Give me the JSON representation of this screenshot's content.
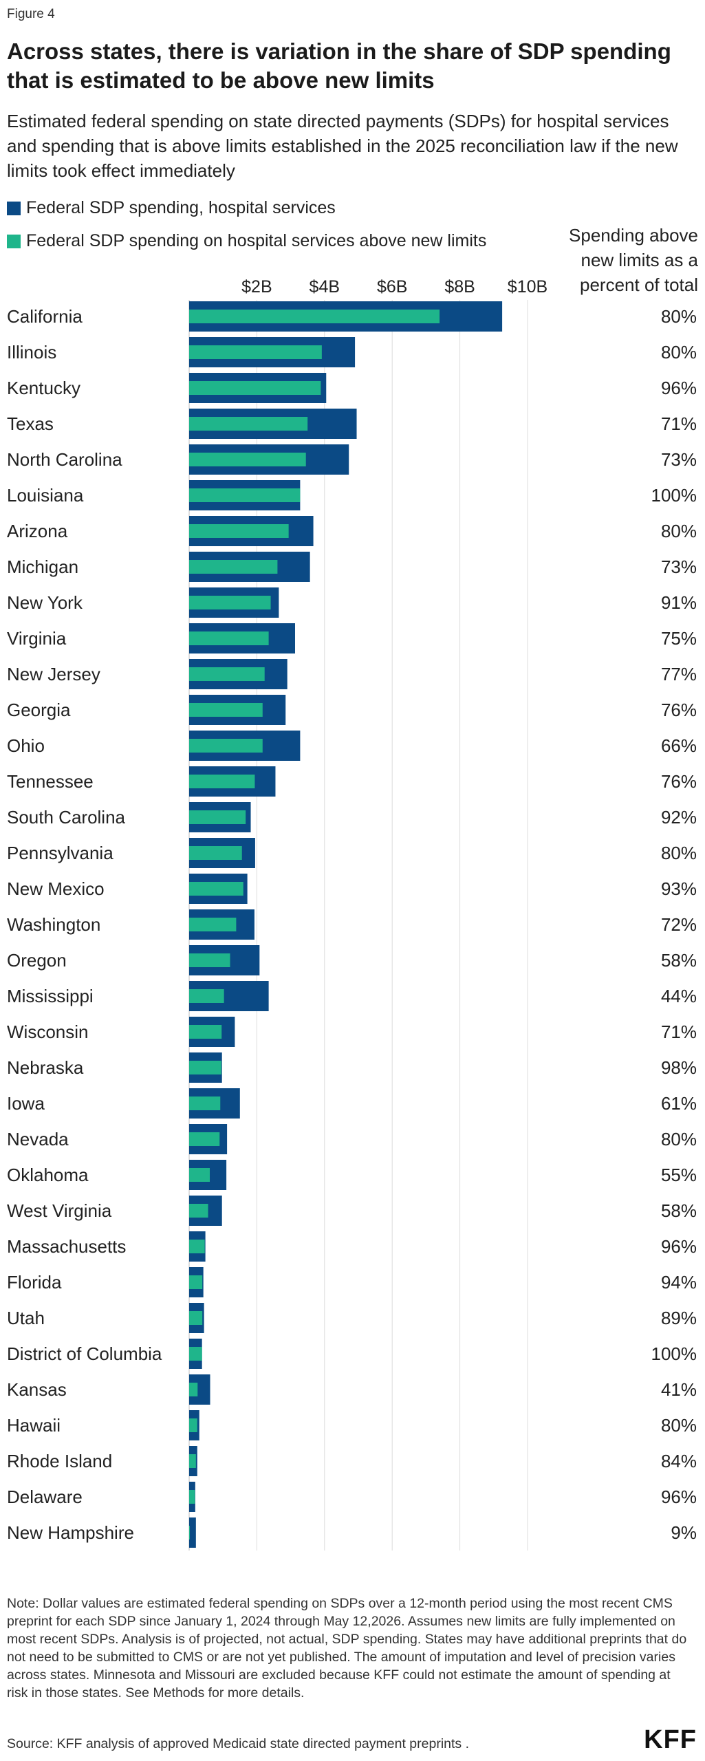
{
  "figure_label": "Figure 4",
  "chart_data": {
    "type": "bar",
    "title": "Across states, there is variation in the share of SDP spending that is estimated to be above new limits",
    "subtitle": "Estimated federal spending on state directed payments (SDPs) for hospital services and spending that is above limits established in the 2025 reconciliation law if the new limits took effect immediately",
    "orientation": "horizontal",
    "xlim": [
      0,
      10.5
    ],
    "x_unit": "billions of dollars",
    "x_ticks": [
      2,
      4,
      6,
      8,
      10
    ],
    "x_tick_labels": [
      "$2B",
      "$4B",
      "$6B",
      "$8B",
      "$10B"
    ],
    "grid": true,
    "legend_position": "top-left",
    "colors": {
      "total": "#0b4a85",
      "above": "#1fb58b"
    },
    "pct_column_header": "Spending above new limits as a percent of total",
    "categories": [
      "California",
      "Illinois",
      "Kentucky",
      "Texas",
      "North Carolina",
      "Louisiana",
      "Arizona",
      "Michigan",
      "New York",
      "Virginia",
      "New Jersey",
      "Georgia",
      "Ohio",
      "Tennessee",
      "South Carolina",
      "Pennsylvania",
      "New Mexico",
      "Washington",
      "Oregon",
      "Mississippi",
      "Wisconsin",
      "Nebraska",
      "Iowa",
      "Nevada",
      "Oklahoma",
      "West Virginia",
      "Massachusetts",
      "Florida",
      "Utah",
      "District of Columbia",
      "Kansas",
      "Hawaii",
      "Rhode Island",
      "Delaware",
      "New Hampshire"
    ],
    "series": [
      {
        "name": "Federal SDP spending, hospital services",
        "values": [
          9.25,
          4.9,
          4.05,
          4.95,
          4.72,
          3.28,
          3.67,
          3.57,
          2.65,
          3.13,
          2.9,
          2.85,
          3.28,
          2.55,
          1.82,
          1.95,
          1.72,
          1.93,
          2.08,
          2.35,
          1.35,
          0.97,
          1.5,
          1.12,
          1.1,
          0.97,
          0.48,
          0.42,
          0.44,
          0.38,
          0.62,
          0.3,
          0.24,
          0.18,
          0.2
        ]
      },
      {
        "name": "Federal SDP spending on hospital services above new limits",
        "values": [
          7.4,
          3.92,
          3.89,
          3.5,
          3.45,
          3.28,
          2.94,
          2.61,
          2.41,
          2.35,
          2.23,
          2.17,
          2.17,
          1.94,
          1.67,
          1.56,
          1.6,
          1.39,
          1.21,
          1.03,
          0.96,
          0.95,
          0.92,
          0.9,
          0.61,
          0.56,
          0.46,
          0.39,
          0.39,
          0.38,
          0.25,
          0.24,
          0.2,
          0.17,
          0.02
        ]
      }
    ],
    "pct_labels": [
      "80%",
      "80%",
      "96%",
      "71%",
      "73%",
      "100%",
      "80%",
      "73%",
      "91%",
      "75%",
      "77%",
      "76%",
      "66%",
      "76%",
      "92%",
      "80%",
      "93%",
      "72%",
      "58%",
      "44%",
      "71%",
      "98%",
      "61%",
      "80%",
      "55%",
      "58%",
      "96%",
      "94%",
      "89%",
      "100%",
      "41%",
      "80%",
      "84%",
      "96%",
      "9%"
    ]
  },
  "note": "Note: Dollar values are estimated federal spending on SDPs over a 12-month period using the most recent CMS preprint for each SDP since January 1, 2024 through May 12,2026. Assumes new limits are fully implemented on most recent SDPs. Analysis is of projected, not actual, SDP spending. States may have additional preprints that do not need to be submitted to CMS or are not yet published. The amount of imputation and level of precision varies across states. Minnesota and Missouri are excluded because KFF could not estimate the amount of spending at risk in those states. See Methods for more details.",
  "source": "Source: KFF analysis of approved Medicaid state directed payment preprints .",
  "logo": "KFF"
}
